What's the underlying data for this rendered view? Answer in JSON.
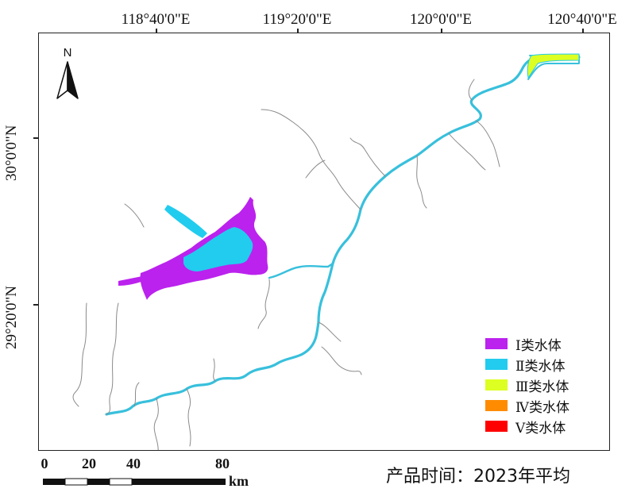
{
  "graticule": {
    "longitudes": [
      "118°40'0\"E",
      "119°20'0\"E",
      "120°0'0\"E",
      "120°40'0\"E"
    ],
    "latitudes": [
      "30°0'0\"N",
      "29°20'0\"N"
    ]
  },
  "north_arrow": {
    "label": "N",
    "icon": "north-arrow-icon"
  },
  "legend": [
    {
      "label": "Ⅰ类水体",
      "color": "#bb22ee"
    },
    {
      "label": "Ⅱ类水体",
      "color": "#22ccee"
    },
    {
      "label": "Ⅲ类水体",
      "color": "#ddff22"
    },
    {
      "label": "Ⅳ类水体",
      "color": "#ff8c00"
    },
    {
      "label": "Ⅴ类水体",
      "color": "#ff0000"
    }
  ],
  "scale_bar": {
    "ticks": [
      "0",
      "20",
      "40",
      "80"
    ],
    "unit": "km"
  },
  "product_time": "产品时间：2023年平均",
  "colors": {
    "river": "#38c0dc",
    "tributary": "#8a8a8a",
    "frame": "#222222"
  }
}
